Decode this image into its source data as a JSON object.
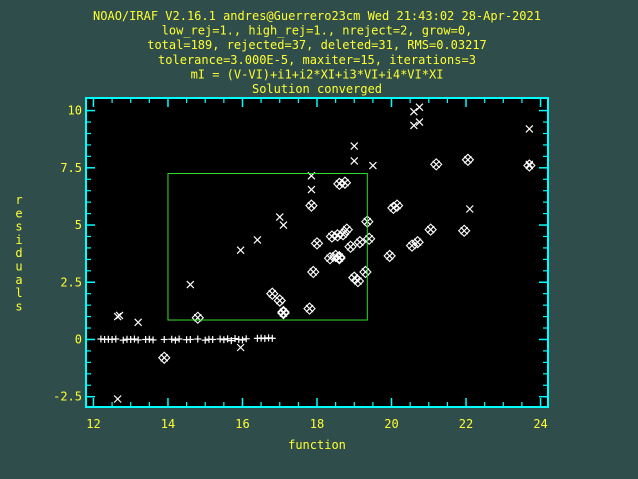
{
  "header": {
    "lines": [
      "NOAO/IRAF V2.16.1 andres@Guerrero23cm Wed 21:43:02 28-Apr-2021",
      "low_rej=1., high_rej=1., nreject=2, grow=0,",
      "total=189, rejected=37, deleted=31, RMS=0.03217",
      "tolerance=3.000E-5, maxiter=15, iterations=3",
      "mI = (V-VI)+i1+i2*XI+i3*VI+i4*VI*XI",
      "Solution converged"
    ]
  },
  "colors": {
    "background": "#2e4d4b",
    "plot_bg": "#000000",
    "frame": "#00ffff",
    "text": "#ffff33",
    "points": "#ffffff",
    "box": "#33dd33"
  },
  "chart_data": {
    "type": "scatter",
    "xlabel": "function",
    "ylabel": "residuals",
    "xlim": [
      11.8,
      24.2
    ],
    "ylim": [
      -2.95,
      10.55
    ],
    "xticks": [
      12,
      14,
      16,
      18,
      20,
      22,
      24
    ],
    "xtick_labels": [
      "12",
      "14",
      "16",
      "18",
      "20",
      "22",
      "24"
    ],
    "yticks": [
      -2.5,
      0,
      2.5,
      5,
      7.5,
      10
    ],
    "ytick_labels": [
      "-2.5",
      "0",
      "2.5",
      "5",
      "7.5",
      "10"
    ],
    "grid": false,
    "selection_box": {
      "x": [
        14.0,
        19.35
      ],
      "y": [
        0.85,
        7.25
      ]
    },
    "kept_points": {
      "x": [
        12.2,
        12.3,
        12.4,
        12.5,
        12.6,
        12.8,
        12.9,
        13.0,
        13.1,
        13.2,
        13.4,
        13.5,
        13.6,
        13.9,
        14.1,
        14.2,
        14.3,
        14.5,
        14.6,
        14.8,
        15.0,
        15.1,
        15.2,
        15.4,
        15.5,
        15.6,
        15.7,
        15.8,
        15.9,
        16.0,
        16.1,
        16.4,
        16.5,
        16.6,
        16.7,
        16.8
      ],
      "y": [
        0.02,
        0.0,
        0.01,
        0.0,
        0.02,
        -0.03,
        0.01,
        0.0,
        0.02,
        -0.02,
        0.0,
        0.01,
        -0.02,
        0.0,
        0.01,
        -0.03,
        0.02,
        -0.01,
        0.0,
        0.02,
        -0.03,
        0.01,
        0.0,
        0.02,
        -0.01,
        0.03,
        -0.05,
        0.04,
        0.0,
        -0.02,
        0.03,
        0.05,
        0.06,
        0.04,
        0.07,
        0.05
      ]
    },
    "deleted_points": {
      "x": [
        12.65,
        12.7,
        13.2,
        14.6,
        15.95,
        15.95,
        16.4,
        17.0,
        17.1,
        17.85,
        17.85,
        19.0,
        19.0,
        19.5,
        20.6,
        20.6,
        20.75,
        20.75,
        22.1,
        23.7,
        23.7,
        12.65
      ],
      "y": [
        1.0,
        1.05,
        0.75,
        2.4,
        3.9,
        -0.35,
        4.35,
        5.35,
        5.0,
        7.15,
        6.55,
        8.45,
        7.8,
        7.6,
        9.95,
        9.35,
        10.15,
        9.5,
        5.7,
        9.2,
        7.65,
        -2.6
      ]
    },
    "rejected_points": {
      "x": [
        13.9,
        14.8,
        16.8,
        17.0,
        17.1,
        17.1,
        17.8,
        17.9,
        18.0,
        18.35,
        18.4,
        18.5,
        18.6,
        18.6,
        18.7,
        18.75,
        18.8,
        18.9,
        19.0,
        19.1,
        19.15,
        19.3,
        19.35,
        19.4,
        19.95,
        20.05,
        20.15,
        20.55,
        20.7,
        21.05,
        21.2,
        21.95,
        22.05,
        23.7,
        18.6,
        18.55,
        17.85
      ],
      "y": [
        -0.8,
        0.95,
        2.0,
        1.7,
        1.15,
        1.2,
        1.35,
        2.95,
        4.2,
        3.55,
        4.5,
        3.65,
        3.55,
        6.8,
        4.6,
        6.85,
        4.8,
        4.05,
        2.7,
        2.55,
        4.25,
        2.95,
        5.15,
        4.4,
        3.65,
        5.75,
        5.85,
        4.1,
        4.25,
        4.8,
        7.65,
        4.75,
        7.85,
        7.6,
        3.6,
        4.55,
        5.85
      ]
    }
  }
}
